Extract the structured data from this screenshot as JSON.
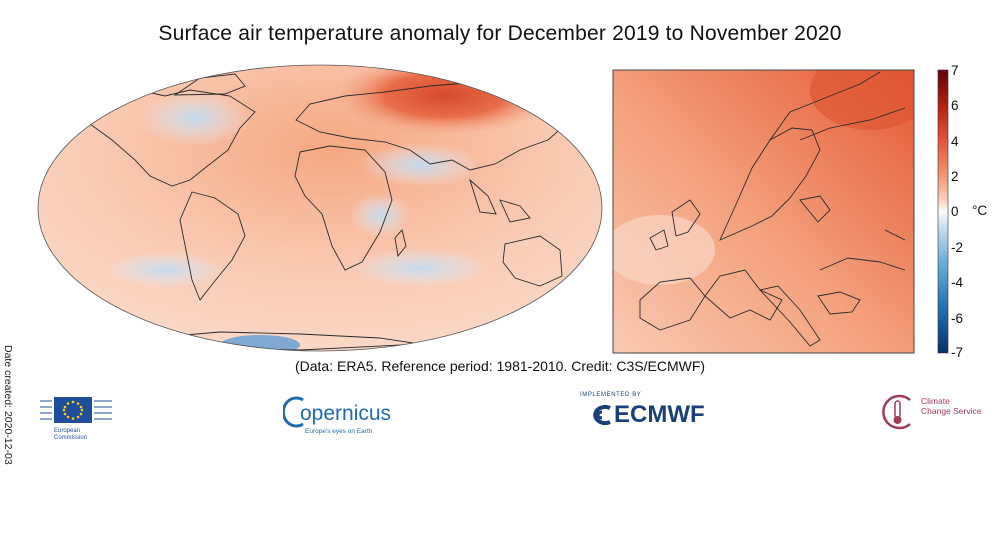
{
  "title": "Surface air temperature anomaly for December 2019 to November 2020",
  "date_created": "Date created: 2020-12-03",
  "caption": "(Data: ERA5.  Reference period: 1981-2010.  Credit: C3S/ECMWF)",
  "colorbar": {
    "ticks": [
      "7",
      "6",
      "4",
      "2",
      "0",
      "-2",
      "-4",
      "-6",
      "-7"
    ],
    "unit": "°C",
    "range": [
      -7,
      7
    ],
    "colors": [
      "#08306b",
      "#2171b5",
      "#6baed6",
      "#c6dbef",
      "#fbfbfb",
      "#fcd2bf",
      "#f59a76",
      "#e2553a",
      "#b0200d",
      "#67000d"
    ]
  },
  "logos": {
    "eu": {
      "line1": "European",
      "line2": "Commission"
    },
    "copernicus": {
      "name": "opernicus",
      "sub": "Europe's eyes on Earth"
    },
    "ecmwf": {
      "small": "IMPLEMENTED BY",
      "name": "ECMWF"
    },
    "c3s": {
      "line1": "Climate",
      "line2": "Change Service"
    }
  }
}
